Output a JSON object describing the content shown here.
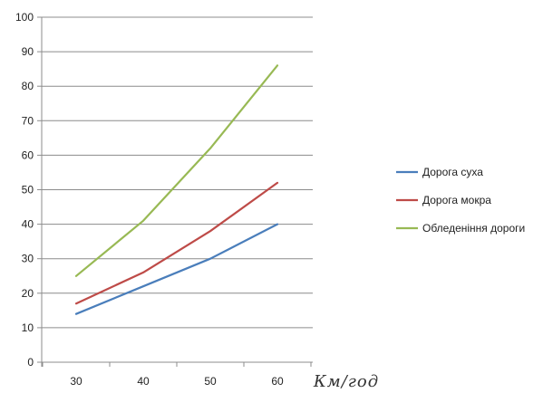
{
  "chart_data": {
    "type": "line",
    "categories": [
      "30",
      "40",
      "50",
      "60"
    ],
    "x": [
      30,
      40,
      50,
      60
    ],
    "series": [
      {
        "name": "Дорога суха",
        "values": [
          14,
          22,
          30,
          40
        ],
        "color": "#4a7ebb"
      },
      {
        "name": "Дорога мокра",
        "values": [
          17,
          26,
          38,
          52
        ],
        "color": "#be4b48"
      },
      {
        "name": "Обледеніння дороги",
        "values": [
          25,
          41,
          62,
          86
        ],
        "color": "#98b954"
      }
    ],
    "title": "",
    "xlabel": "Км/год",
    "ylabel": "",
    "ylim": [
      0,
      100
    ],
    "yticks": [
      0,
      10,
      20,
      30,
      40,
      50,
      60,
      70,
      80,
      90,
      100
    ],
    "grid": true,
    "legend": "right"
  }
}
